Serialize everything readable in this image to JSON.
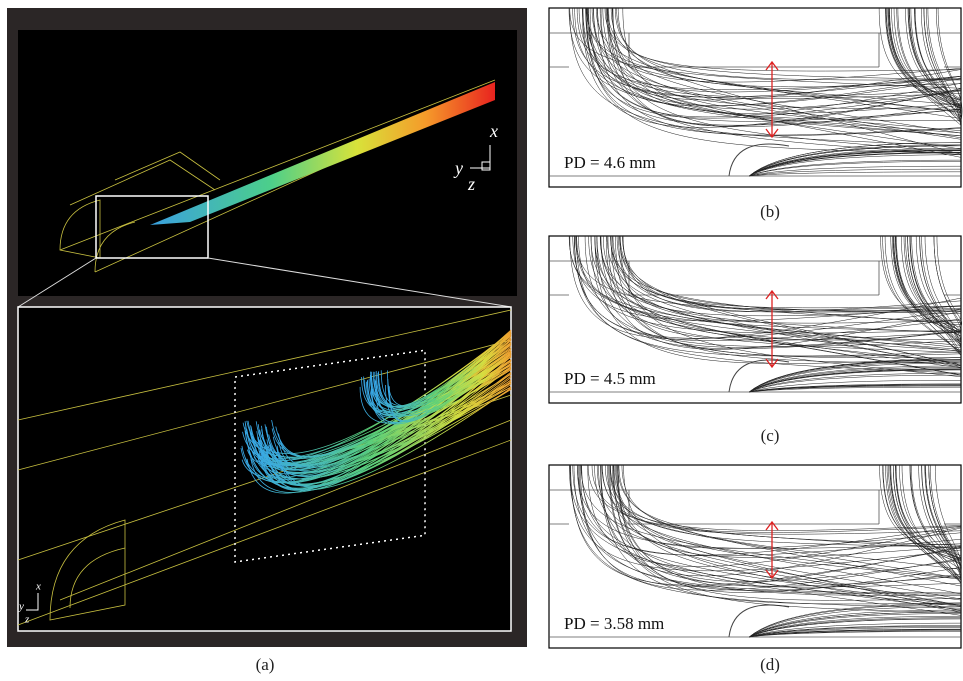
{
  "panels": [
    {
      "label": "(a)",
      "axes": [
        "x",
        "y",
        "z"
      ],
      "inset_axes": [
        "x",
        "y",
        "z"
      ]
    },
    {
      "label": "(b)",
      "annotation": "PD = 4.6 mm"
    },
    {
      "label": "(c)",
      "annotation": "PD = 4.5 mm"
    },
    {
      "label": "(d)",
      "annotation": "PD = 3.58 mm"
    }
  ]
}
